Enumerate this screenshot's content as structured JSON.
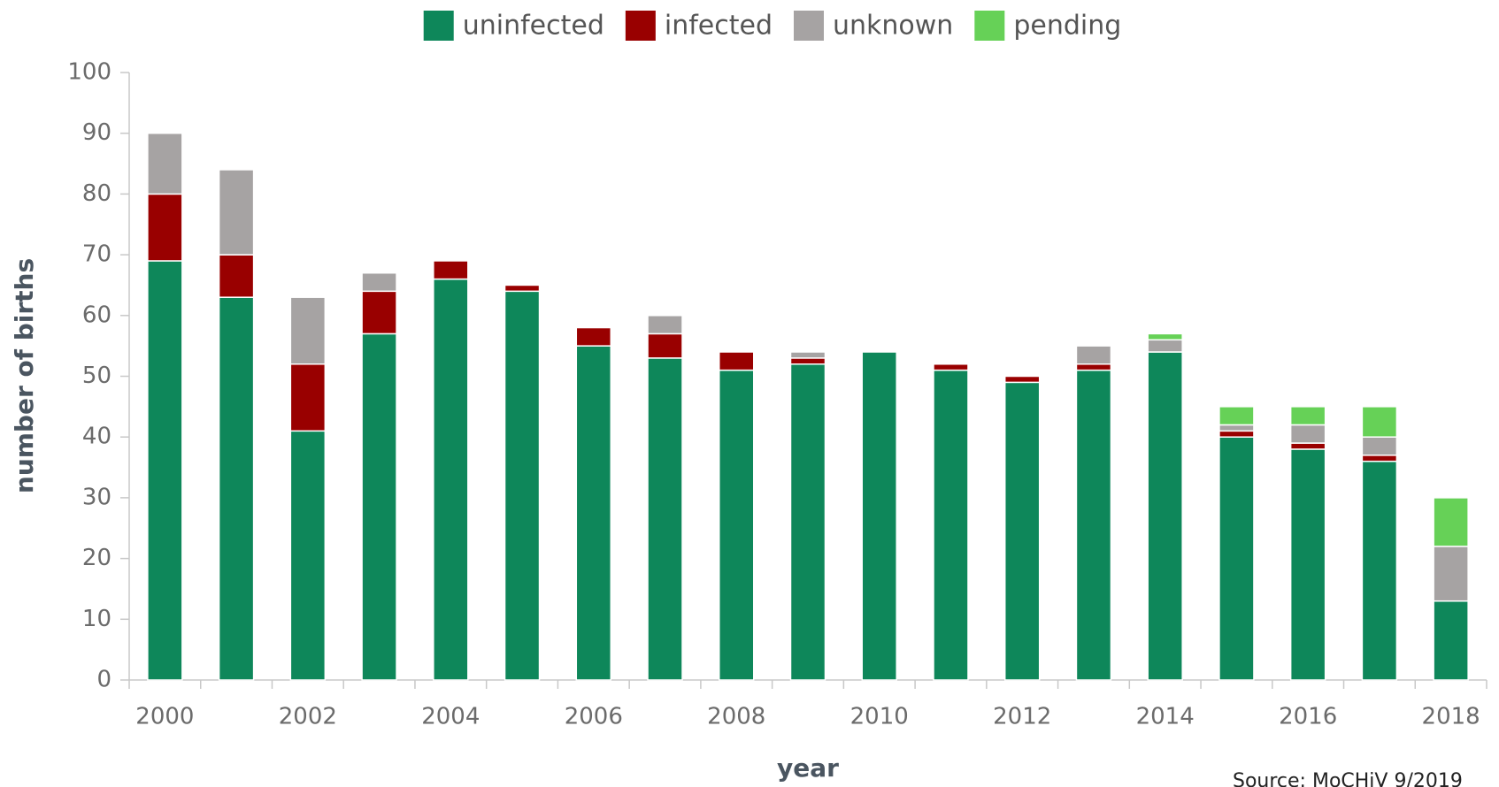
{
  "chart_data": {
    "type": "stacked_bar",
    "x_label": "year",
    "y_label": "number of births",
    "source": "Source: MoCHiV 9/2019",
    "categories": [
      2000,
      null,
      2002,
      null,
      2004,
      null,
      2006,
      null,
      2008,
      null,
      2010,
      null,
      2012,
      null,
      2014,
      null,
      2016,
      null,
      2018
    ],
    "series": [
      {
        "name": "uninfected",
        "color": "#0e875a",
        "values": [
          69,
          63,
          41,
          57,
          66,
          64,
          55,
          53,
          51,
          52,
          54,
          51,
          49,
          51,
          54,
          40,
          38,
          36,
          13
        ]
      },
      {
        "name": "infected",
        "color": "#990000",
        "values": [
          11,
          7,
          11,
          7,
          3,
          1,
          3,
          4,
          3,
          1,
          0,
          1,
          1,
          1,
          0,
          1,
          1,
          1,
          0
        ]
      },
      {
        "name": "unknown",
        "color": "#a6a3a3",
        "values": [
          10,
          14,
          11,
          3,
          0,
          0,
          0,
          3,
          0,
          1,
          0,
          0,
          0,
          3,
          2,
          1,
          3,
          3,
          9
        ]
      },
      {
        "name": "pending",
        "color": "#66d157",
        "values": [
          0,
          0,
          0,
          0,
          0,
          0,
          0,
          0,
          0,
          0,
          0,
          0,
          0,
          0,
          1,
          3,
          3,
          5,
          8
        ]
      }
    ],
    "ylim": [
      0,
      100
    ],
    "yticks": [
      0,
      10,
      20,
      30,
      40,
      50,
      60,
      70,
      80,
      90,
      100
    ],
    "grid": false,
    "legend": "top"
  }
}
